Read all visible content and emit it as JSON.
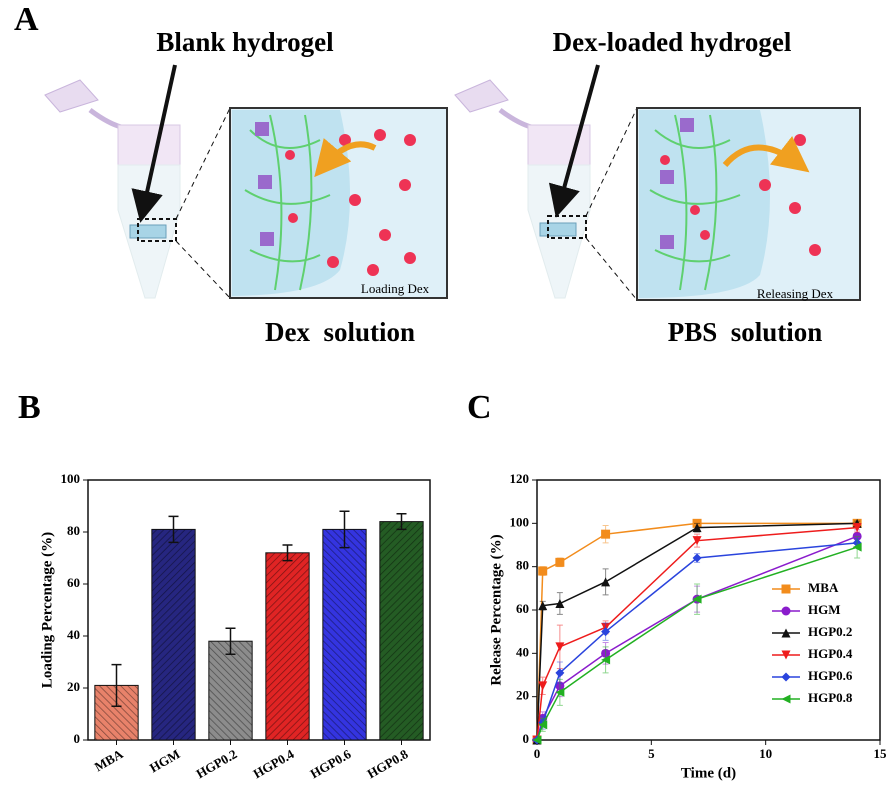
{
  "panel_a": {
    "label": "A",
    "left_title": "Blank hydrogel",
    "right_title": "Dex-loaded hydrogel",
    "left_caption": "Loading Dex",
    "right_caption": "Releasing Dex",
    "left_solution": "Dex  solution",
    "right_solution": "PBS  solution"
  },
  "chart_data": [
    {
      "type": "bar",
      "panel": "B",
      "ylabel": "Loading Percentage (%)",
      "categories": [
        "MBA",
        "HGM",
        "HGP0.2",
        "HGP0.4",
        "HGP0.6",
        "HGP0.8"
      ],
      "values": [
        21,
        81,
        38,
        72,
        81,
        84
      ],
      "errors": [
        8,
        5,
        5,
        3,
        7,
        3
      ],
      "colors": [
        "#e8826a",
        "#262680",
        "#8c8c8c",
        "#e02424",
        "#3434e0",
        "#245c24"
      ],
      "ylim": [
        0,
        100
      ],
      "yticks": [
        0,
        20,
        40,
        60,
        80,
        100
      ]
    },
    {
      "type": "line",
      "panel": "C",
      "xlabel": "Time (d)",
      "ylabel": "Release Percentage (%)",
      "x": [
        0,
        0.25,
        1,
        3,
        7,
        14
      ],
      "series": [
        {
          "name": "MBA",
          "color": "#f28c1c",
          "marker": "square",
          "values": [
            0,
            78,
            82,
            95,
            100,
            100
          ],
          "errors": [
            0,
            2,
            2,
            4,
            1,
            1
          ]
        },
        {
          "name": "HGM",
          "color": "#8a1ccc",
          "marker": "circle",
          "values": [
            0,
            10,
            25,
            40,
            65,
            94
          ],
          "errors": [
            0,
            3,
            5,
            5,
            6,
            3
          ]
        },
        {
          "name": "HGP0.2",
          "color": "#111111",
          "marker": "triangle-up",
          "values": [
            0,
            62,
            63,
            73,
            98,
            100
          ],
          "errors": [
            0,
            2,
            5,
            6,
            2,
            1
          ]
        },
        {
          "name": "HGP0.4",
          "color": "#ee1c1c",
          "marker": "triangle-down",
          "values": [
            0,
            25,
            43,
            52,
            92,
            98
          ],
          "errors": [
            0,
            4,
            10,
            3,
            3,
            2
          ]
        },
        {
          "name": "HGP0.6",
          "color": "#2a44dd",
          "marker": "diamond",
          "values": [
            0,
            8,
            31,
            50,
            84,
            91
          ],
          "errors": [
            0,
            3,
            5,
            4,
            2,
            2
          ]
        },
        {
          "name": "HGP0.8",
          "color": "#22b022",
          "marker": "triangle-left",
          "values": [
            0,
            7,
            22,
            37,
            65,
            89
          ],
          "errors": [
            0,
            3,
            6,
            6,
            7,
            5
          ]
        }
      ],
      "xlim": [
        0,
        15
      ],
      "xticks": [
        0,
        5,
        10,
        15
      ],
      "ylim": [
        0,
        120
      ],
      "yticks": [
        0,
        20,
        40,
        60,
        80,
        100,
        120
      ],
      "legend": "right"
    }
  ]
}
